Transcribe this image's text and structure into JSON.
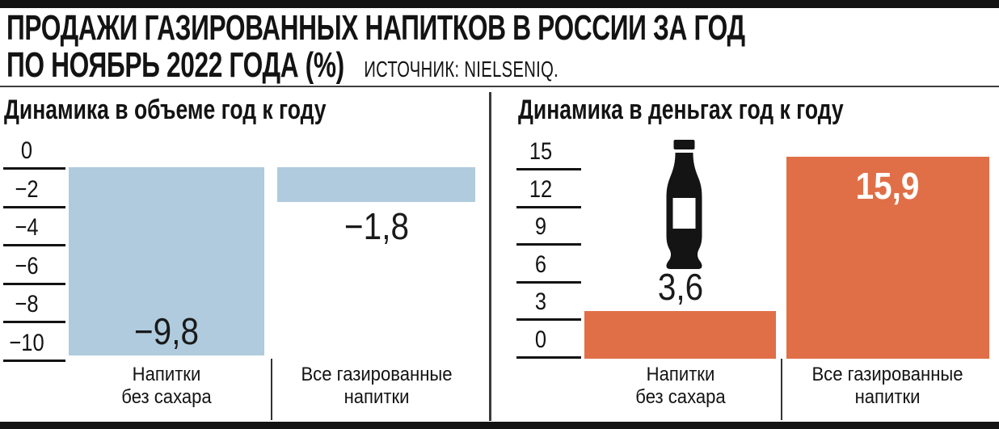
{
  "page": {
    "title_line1": "ПРОДАЖИ ГАЗИРОВАННЫХ НАПИТКОВ В РОССИИ ЗА ГОД",
    "title_line2": "ПО НОЯБРЬ 2022 ГОДА (%)",
    "source": "ИСТОЧНИК: NIELSENIQ."
  },
  "colors": {
    "bar_blue": "#afcbdd",
    "bar_orange": "#e06f47",
    "ink": "#131313",
    "value_on_orange": "#ffffff"
  },
  "chart_data": [
    {
      "type": "bar",
      "title": "Динамика в объеме год к году",
      "unit": "%",
      "categories": [
        "Напитки без сахара",
        "Все газированные напитки"
      ],
      "category_label_lines": [
        [
          "Напитки",
          "без сахара"
        ],
        [
          "Все газированные",
          "напитки"
        ]
      ],
      "values": [
        -9.8,
        -1.8
      ],
      "value_labels": [
        "−9,8",
        "−1,8"
      ],
      "bar_color": "#afcbdd",
      "axis_ticks": [
        0,
        -2,
        -4,
        -6,
        -8,
        -10
      ],
      "axis_tick_labels": [
        "0",
        "−2",
        "−4",
        "−6",
        "−8",
        "−10"
      ],
      "ylim": [
        -10,
        0
      ],
      "grid": "short horizontal tick dashes left of bars",
      "legend": "none",
      "value_label_styles": [
        {
          "position": "inside-bottom",
          "color": "#1a1a1a",
          "bold": false
        },
        {
          "position": "below",
          "color": "#1a1a1a",
          "bold": false
        }
      ]
    },
    {
      "type": "bar",
      "title": "Динамика в деньгах год к году",
      "unit": "%",
      "categories": [
        "Напитки без сахара",
        "Все газированные напитки"
      ],
      "category_label_lines": [
        [
          "Напитки",
          "без сахара"
        ],
        [
          "Все газированные",
          "напитки"
        ]
      ],
      "values": [
        3.6,
        15.9
      ],
      "value_labels": [
        "3,6",
        "15,9"
      ],
      "bar_color": "#e06f47",
      "axis_ticks": [
        15,
        12,
        9,
        6,
        3,
        0
      ],
      "axis_tick_labels": [
        "15",
        "12",
        "9",
        "6",
        "3",
        "0"
      ],
      "ylim": [
        0,
        15
      ],
      "grid": "short horizontal tick dashes left of bars",
      "legend": "none",
      "icon": "soda-bottle-icon",
      "value_label_styles": [
        {
          "position": "above",
          "color": "#1a1a1a",
          "bold": false
        },
        {
          "position": "inside-top",
          "color": "#ffffff",
          "bold": true
        }
      ]
    }
  ]
}
